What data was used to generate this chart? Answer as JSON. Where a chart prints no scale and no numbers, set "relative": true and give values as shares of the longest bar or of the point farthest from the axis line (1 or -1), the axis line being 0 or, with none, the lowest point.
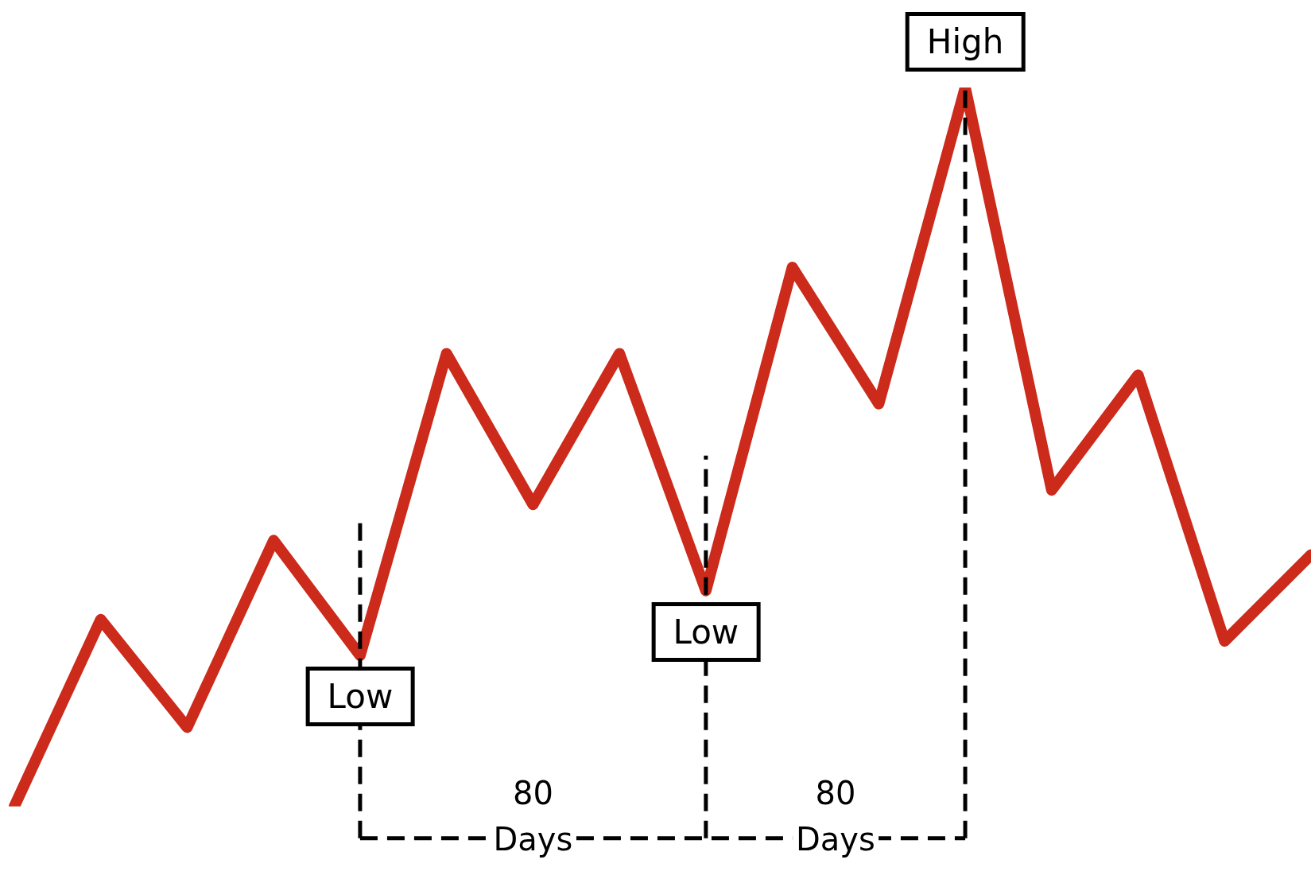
{
  "chart_data": {
    "type": "line",
    "relative": true,
    "grid": false,
    "legend": false,
    "marker": "none",
    "line_style": "solid",
    "categories": [
      null,
      null,
      null,
      null,
      null,
      null,
      null,
      null,
      null,
      null,
      null,
      null,
      null,
      null,
      null,
      null
    ],
    "series": [
      {
        "color": "#cc2a1a",
        "values": [
          0,
          0.26,
          0.11,
          0.37,
          0.21,
          0.63,
          0.42,
          0.63,
          0.3,
          0.75,
          0.56,
          1,
          0.44,
          0.6,
          0.23,
          0.35
        ]
      }
    ],
    "annotations": [
      {
        "text": "Low",
        "y": 0.21
      },
      {
        "text": "80 Days"
      },
      {
        "text": "Low",
        "y": 0.3
      },
      {
        "text": "80 Days"
      },
      {
        "text": "High",
        "y": 1
      }
    ]
  }
}
